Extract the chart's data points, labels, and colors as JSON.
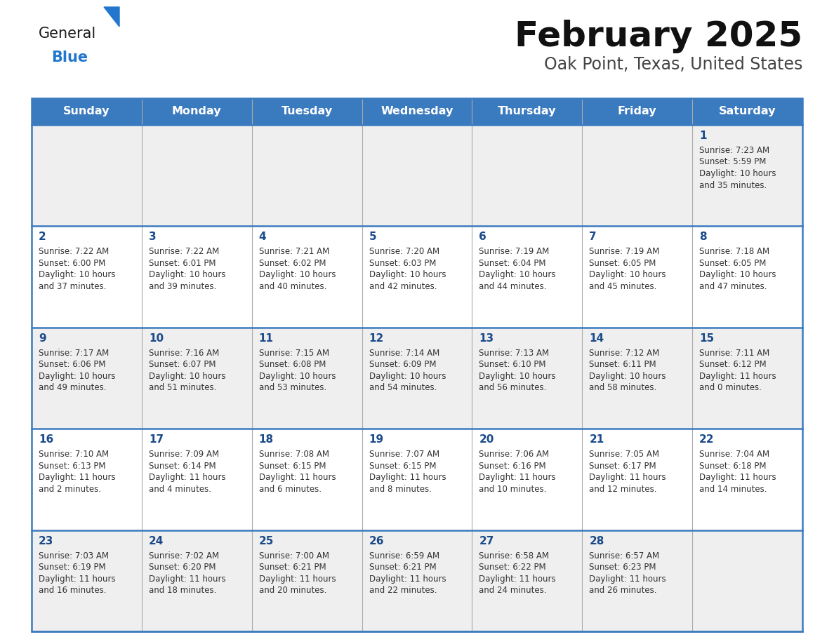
{
  "title": "February 2025",
  "subtitle": "Oak Point, Texas, United States",
  "header_bg": "#3a7abf",
  "header_text_color": "#ffffff",
  "day_names": [
    "Sunday",
    "Monday",
    "Tuesday",
    "Wednesday",
    "Thursday",
    "Friday",
    "Saturday"
  ],
  "row_bg_alt": "#efefef",
  "row_bg_main": "#ffffff",
  "cell_text_color": "#333333",
  "day_num_color": "#1a4a8a",
  "border_color": "#3a7abf",
  "divider_color": "#aaaaaa",
  "general_text_color": "#1a1a1a",
  "blue_logo_color": "#2277cc",
  "title_color": "#111111",
  "subtitle_color": "#444444",
  "calendar": [
    [
      null,
      null,
      null,
      null,
      null,
      null,
      {
        "day": 1,
        "sunrise": "7:23 AM",
        "sunset": "5:59 PM",
        "daylight": "10 hours and 35 minutes."
      }
    ],
    [
      {
        "day": 2,
        "sunrise": "7:22 AM",
        "sunset": "6:00 PM",
        "daylight": "10 hours and 37 minutes."
      },
      {
        "day": 3,
        "sunrise": "7:22 AM",
        "sunset": "6:01 PM",
        "daylight": "10 hours and 39 minutes."
      },
      {
        "day": 4,
        "sunrise": "7:21 AM",
        "sunset": "6:02 PM",
        "daylight": "10 hours and 40 minutes."
      },
      {
        "day": 5,
        "sunrise": "7:20 AM",
        "sunset": "6:03 PM",
        "daylight": "10 hours and 42 minutes."
      },
      {
        "day": 6,
        "sunrise": "7:19 AM",
        "sunset": "6:04 PM",
        "daylight": "10 hours and 44 minutes."
      },
      {
        "day": 7,
        "sunrise": "7:19 AM",
        "sunset": "6:05 PM",
        "daylight": "10 hours and 45 minutes."
      },
      {
        "day": 8,
        "sunrise": "7:18 AM",
        "sunset": "6:05 PM",
        "daylight": "10 hours and 47 minutes."
      }
    ],
    [
      {
        "day": 9,
        "sunrise": "7:17 AM",
        "sunset": "6:06 PM",
        "daylight": "10 hours and 49 minutes."
      },
      {
        "day": 10,
        "sunrise": "7:16 AM",
        "sunset": "6:07 PM",
        "daylight": "10 hours and 51 minutes."
      },
      {
        "day": 11,
        "sunrise": "7:15 AM",
        "sunset": "6:08 PM",
        "daylight": "10 hours and 53 minutes."
      },
      {
        "day": 12,
        "sunrise": "7:14 AM",
        "sunset": "6:09 PM",
        "daylight": "10 hours and 54 minutes."
      },
      {
        "day": 13,
        "sunrise": "7:13 AM",
        "sunset": "6:10 PM",
        "daylight": "10 hours and 56 minutes."
      },
      {
        "day": 14,
        "sunrise": "7:12 AM",
        "sunset": "6:11 PM",
        "daylight": "10 hours and 58 minutes."
      },
      {
        "day": 15,
        "sunrise": "7:11 AM",
        "sunset": "6:12 PM",
        "daylight": "11 hours and 0 minutes."
      }
    ],
    [
      {
        "day": 16,
        "sunrise": "7:10 AM",
        "sunset": "6:13 PM",
        "daylight": "11 hours and 2 minutes."
      },
      {
        "day": 17,
        "sunrise": "7:09 AM",
        "sunset": "6:14 PM",
        "daylight": "11 hours and 4 minutes."
      },
      {
        "day": 18,
        "sunrise": "7:08 AM",
        "sunset": "6:15 PM",
        "daylight": "11 hours and 6 minutes."
      },
      {
        "day": 19,
        "sunrise": "7:07 AM",
        "sunset": "6:15 PM",
        "daylight": "11 hours and 8 minutes."
      },
      {
        "day": 20,
        "sunrise": "7:06 AM",
        "sunset": "6:16 PM",
        "daylight": "11 hours and 10 minutes."
      },
      {
        "day": 21,
        "sunrise": "7:05 AM",
        "sunset": "6:17 PM",
        "daylight": "11 hours and 12 minutes."
      },
      {
        "day": 22,
        "sunrise": "7:04 AM",
        "sunset": "6:18 PM",
        "daylight": "11 hours and 14 minutes."
      }
    ],
    [
      {
        "day": 23,
        "sunrise": "7:03 AM",
        "sunset": "6:19 PM",
        "daylight": "11 hours and 16 minutes."
      },
      {
        "day": 24,
        "sunrise": "7:02 AM",
        "sunset": "6:20 PM",
        "daylight": "11 hours and 18 minutes."
      },
      {
        "day": 25,
        "sunrise": "7:00 AM",
        "sunset": "6:21 PM",
        "daylight": "11 hours and 20 minutes."
      },
      {
        "day": 26,
        "sunrise": "6:59 AM",
        "sunset": "6:21 PM",
        "daylight": "11 hours and 22 minutes."
      },
      {
        "day": 27,
        "sunrise": "6:58 AM",
        "sunset": "6:22 PM",
        "daylight": "11 hours and 24 minutes."
      },
      {
        "day": 28,
        "sunrise": "6:57 AM",
        "sunset": "6:23 PM",
        "daylight": "11 hours and 26 minutes."
      },
      null
    ]
  ]
}
